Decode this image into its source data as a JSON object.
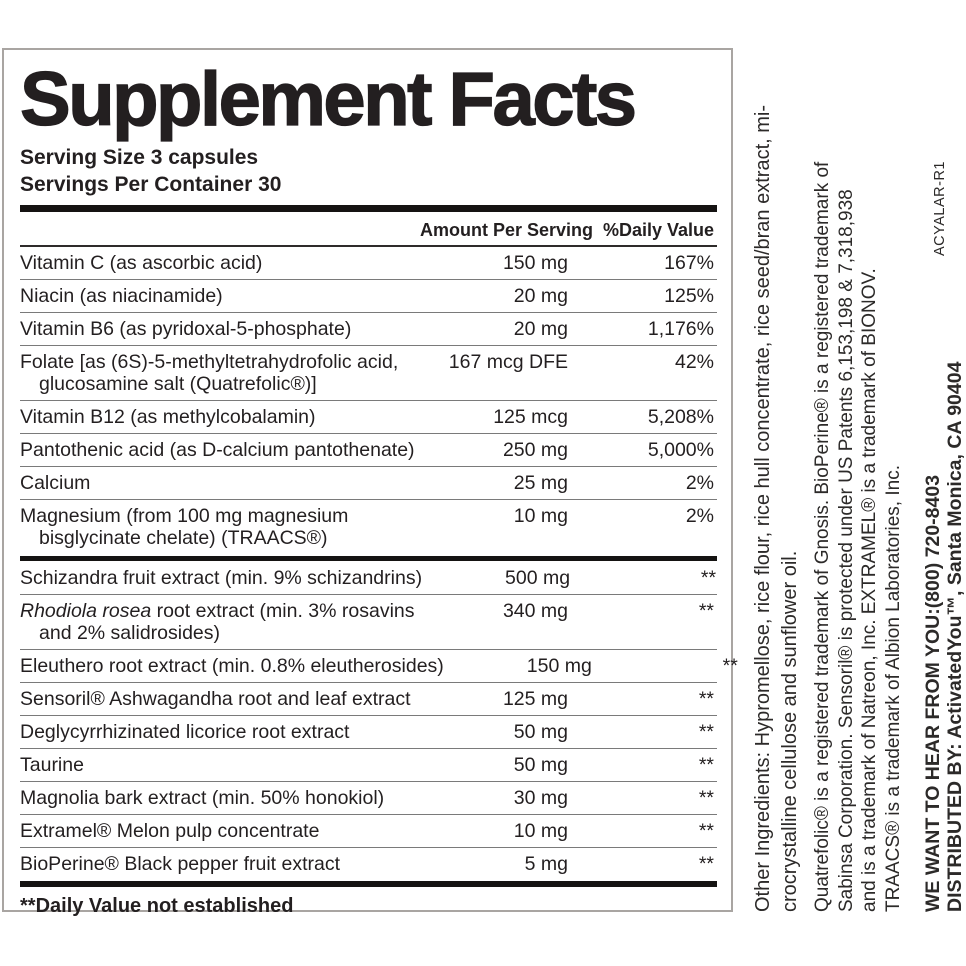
{
  "panel": {
    "title": "Supplement Facts",
    "serving_size": "Serving Size 3 capsules",
    "servings_per_container": "Servings Per Container 30",
    "footnote": "**Daily Value not established"
  },
  "table": {
    "headers": [
      "Amount Per Serving",
      "%Daily Value"
    ],
    "sections": [
      {
        "name": "vitamins-and-minerals",
        "rows": [
          {
            "name": "Vitamin C (as ascorbic acid)",
            "amount": "150 mg",
            "dv": "167%"
          },
          {
            "name": "Niacin (as niacinamide)",
            "amount": "20 mg",
            "dv": "125%"
          },
          {
            "name": "Vitamin B6 (as pyridoxal-5-phosphate)",
            "amount": "20 mg",
            "dv": "1,176%"
          },
          {
            "name": "Folate [as (6S)-5-methyltetrahydrofolic acid,",
            "name2": "glucosamine salt (Quatrefolic®)]",
            "amount": "167 mcg DFE",
            "dv": "42%"
          },
          {
            "name": "Vitamin B12 (as methylcobalamin)",
            "amount": "125 mcg",
            "dv": "5,208%"
          },
          {
            "name": "Pantothenic acid (as D-calcium pantothenate)",
            "amount": "250 mg",
            "dv": "5,000%"
          },
          {
            "name": "Calcium",
            "amount": "25 mg",
            "dv": "2%"
          },
          {
            "name": "Magnesium (from 100 mg magnesium",
            "name2": "bisglycinate chelate) (TRAACS®)",
            "amount": "10 mg",
            "dv": "2%"
          }
        ]
      },
      {
        "name": "botanicals-and-other",
        "rows": [
          {
            "name": "Schizandra fruit extract (min. 9% schizandrins)",
            "amount": "500 mg",
            "dv": "**"
          },
          {
            "name_italic": "Rhodiola rosea",
            "name": " root extract (min. 3% rosavins",
            "name2": "and 2% salidrosides)",
            "amount": "340 mg",
            "dv": "**"
          },
          {
            "name": "Eleuthero root extract (min. 0.8% eleutherosides)",
            "amount": "150 mg",
            "dv": "**"
          },
          {
            "name": "Sensoril® Ashwagandha root and leaf extract",
            "amount": "125 mg",
            "dv": "**"
          },
          {
            "name": "Deglycyrrhizinated licorice root extract",
            "amount": "50 mg",
            "dv": "**"
          },
          {
            "name": "Taurine",
            "amount": "50 mg",
            "dv": "**"
          },
          {
            "name": "Magnolia bark extract (min. 50% honokiol)",
            "amount": "30 mg",
            "dv": "**"
          },
          {
            "name": "Extramel® Melon pulp concentrate",
            "amount": "10 mg",
            "dv": "**"
          },
          {
            "name": "BioPerine® Black pepper fruit extract",
            "amount": "5 mg",
            "dv": "**"
          }
        ]
      }
    ]
  },
  "side_notes": {
    "other_ingredients_lines": [
      "Other Ingredients: Hypromellose, rice flour, rice hull concentrate, rice seed/bran extract, mi-",
      "crocrystalline cellulose and sunflower oil."
    ],
    "trademark_lines": [
      "Quatrefolic® is a registered trademark of Gnosis. BioPerine® is a registered trademark of",
      "Sabinsa Corporation. Sensoril® is protected under US Patents 6,153,198 & 7,318,938",
      "and is a trademark of Natreon, Inc. EXTRAMEL® is a trademark of BIONOV.",
      "TRAACS® is a trademark of Albion Laboratories, Inc."
    ],
    "contact_lines": [
      "WE WANT TO HEAR FROM YOU:(800) 720-8403",
      "DISTRIBUTED BY: ActivatedYou™, Santa Monica, CA 90404"
    ],
    "code": "ACYALAR-R1"
  },
  "colors": {
    "text": "#231f20",
    "rule_thick": "#151312",
    "rule_thin": "#7a7a7a",
    "panel_border": "#a9a5a2",
    "background": "#ffffff"
  }
}
